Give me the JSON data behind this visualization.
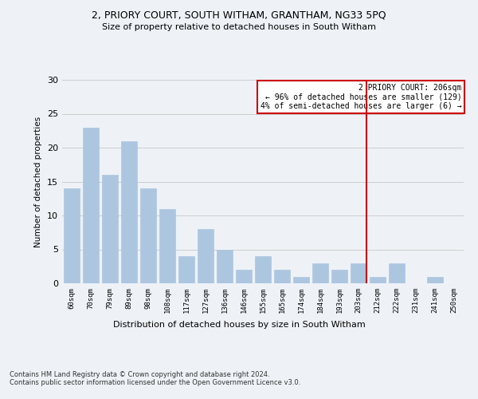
{
  "title": "2, PRIORY COURT, SOUTH WITHAM, GRANTHAM, NG33 5PQ",
  "subtitle": "Size of property relative to detached houses in South Witham",
  "xlabel": "Distribution of detached houses by size in South Witham",
  "ylabel": "Number of detached properties",
  "categories": [
    "60sqm",
    "70sqm",
    "79sqm",
    "89sqm",
    "98sqm",
    "108sqm",
    "117sqm",
    "127sqm",
    "136sqm",
    "146sqm",
    "155sqm",
    "165sqm",
    "174sqm",
    "184sqm",
    "193sqm",
    "203sqm",
    "212sqm",
    "222sqm",
    "231sqm",
    "241sqm",
    "250sqm"
  ],
  "values": [
    14,
    23,
    16,
    21,
    14,
    11,
    4,
    8,
    5,
    2,
    4,
    2,
    1,
    3,
    2,
    3,
    1,
    3,
    0,
    1,
    0
  ],
  "bar_color": "#adc6e0",
  "bar_edgecolor": "#adc6e0",
  "grid_color": "#cccccc",
  "vline_index": 15,
  "vline_color": "#cc0000",
  "annotation_text": "2 PRIORY COURT: 206sqm\n← 96% of detached houses are smaller (129)\n4% of semi-detached houses are larger (6) →",
  "annotation_box_color": "#cc0000",
  "ylim": [
    0,
    30
  ],
  "yticks": [
    0,
    5,
    10,
    15,
    20,
    25,
    30
  ],
  "footnote": "Contains HM Land Registry data © Crown copyright and database right 2024.\nContains public sector information licensed under the Open Government Licence v3.0.",
  "background_color": "#eef2f7"
}
